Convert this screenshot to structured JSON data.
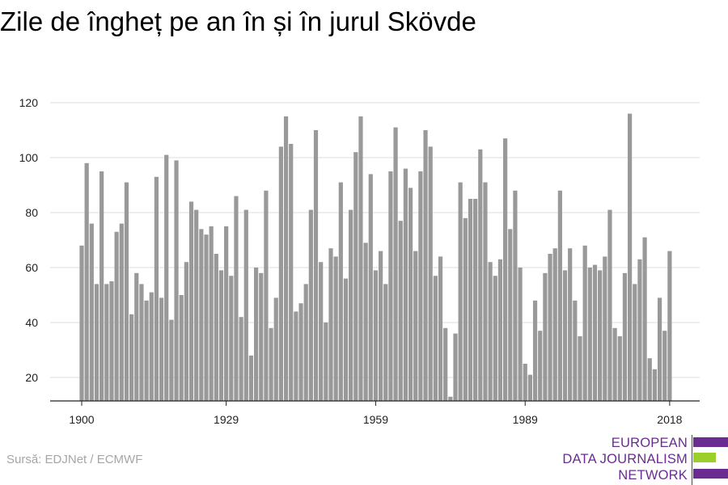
{
  "title": "Zile de îngheț pe an în și în jurul Skövde",
  "source": "Sursă: EDJNet / ECMWF",
  "logo": {
    "line1": "EUROPEAN",
    "line2": "DATA JOURNALISM",
    "line3": "NETWORK",
    "colors": {
      "purple": "#6b2c91",
      "green": "#9bd02a"
    }
  },
  "chart_data": {
    "type": "bar",
    "title": "Zile de îngheț pe an în și în jurul Skövde",
    "xlabel": "",
    "ylabel": "",
    "x_ticks": [
      "1900",
      "1929",
      "1959",
      "1989",
      "2018"
    ],
    "y_ticks": [
      20,
      40,
      60,
      80,
      100,
      120
    ],
    "ylim": [
      11,
      123
    ],
    "xlim": [
      1900,
      2018
    ],
    "grid": true,
    "bar_color": "#999999",
    "x": [
      1900,
      1901,
      1902,
      1903,
      1904,
      1905,
      1906,
      1907,
      1908,
      1909,
      1910,
      1911,
      1912,
      1913,
      1914,
      1915,
      1916,
      1917,
      1918,
      1919,
      1920,
      1921,
      1922,
      1923,
      1924,
      1925,
      1926,
      1927,
      1928,
      1929,
      1930,
      1931,
      1932,
      1933,
      1934,
      1935,
      1936,
      1937,
      1938,
      1939,
      1940,
      1941,
      1942,
      1943,
      1944,
      1945,
      1946,
      1947,
      1948,
      1949,
      1950,
      1951,
      1952,
      1953,
      1954,
      1955,
      1956,
      1957,
      1958,
      1959,
      1960,
      1961,
      1962,
      1963,
      1964,
      1965,
      1966,
      1967,
      1968,
      1969,
      1970,
      1971,
      1972,
      1973,
      1974,
      1975,
      1976,
      1977,
      1978,
      1979,
      1980,
      1981,
      1982,
      1983,
      1984,
      1985,
      1986,
      1987,
      1988,
      1989,
      1990,
      1991,
      1992,
      1993,
      1994,
      1995,
      1996,
      1997,
      1998,
      1999,
      2000,
      2001,
      2002,
      2003,
      2004,
      2005,
      2006,
      2007,
      2008,
      2009,
      2010,
      2011,
      2012,
      2013,
      2014,
      2015,
      2016,
      2017,
      2018
    ],
    "values": [
      68,
      98,
      76,
      54,
      95,
      54,
      55,
      73,
      76,
      91,
      43,
      58,
      54,
      48,
      51,
      93,
      49,
      101,
      41,
      99,
      50,
      62,
      84,
      81,
      74,
      72,
      75,
      65,
      59,
      75,
      57,
      86,
      42,
      81,
      28,
      60,
      58,
      88,
      38,
      49,
      104,
      115,
      105,
      44,
      47,
      54,
      81,
      110,
      62,
      40,
      67,
      64,
      91,
      56,
      81,
      102,
      115,
      69,
      94,
      59,
      66,
      54,
      95,
      111,
      77,
      96,
      89,
      66,
      95,
      110,
      104,
      57,
      64,
      38,
      13,
      36,
      91,
      78,
      85,
      85,
      103,
      91,
      62,
      57,
      63,
      107,
      74,
      88,
      60,
      25,
      21,
      48,
      37,
      58,
      65,
      67,
      88,
      59,
      67,
      48,
      35,
      68,
      60,
      61,
      59,
      64,
      81,
      38,
      35,
      58,
      116,
      54,
      63,
      71,
      27,
      23,
      49,
      37,
      66
    ]
  }
}
